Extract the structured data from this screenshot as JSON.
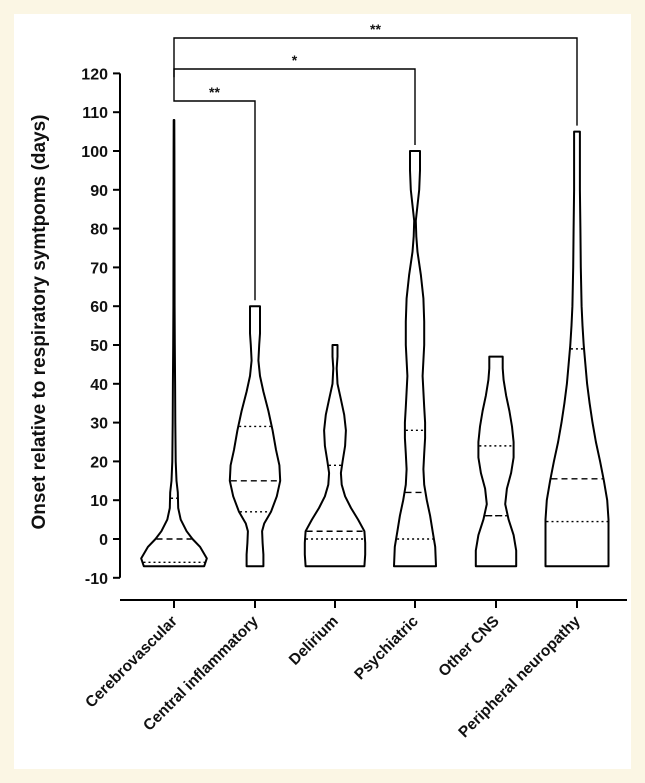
{
  "chart_data": {
    "type": "violin",
    "ylabel": "Onset relative to respiratory symtpoms (days)",
    "ylim": [
      -10,
      120
    ],
    "yticks": [
      -10,
      0,
      10,
      20,
      30,
      40,
      50,
      60,
      70,
      80,
      90,
      100,
      110,
      120
    ],
    "categories": [
      "Cerebrovascular",
      "Central inflammatory",
      "Delirium",
      "Psychiatric",
      "Other CNS",
      "Peripheral neuropathy"
    ],
    "series": [
      {
        "category": "Cerebrovascular",
        "min": -7,
        "max": 108,
        "median": 0,
        "q1": -6,
        "q3": 10.5,
        "density": [
          [
            -7,
            0.72
          ],
          [
            -5,
            0.78
          ],
          [
            -2,
            0.62
          ],
          [
            0,
            0.44
          ],
          [
            2,
            0.3
          ],
          [
            5,
            0.16
          ],
          [
            8,
            0.1
          ],
          [
            12,
            0.09
          ],
          [
            15,
            0.06
          ],
          [
            20,
            0.04
          ],
          [
            30,
            0.03
          ],
          [
            40,
            0.025
          ],
          [
            50,
            0.02
          ],
          [
            60,
            0.015
          ],
          [
            80,
            0.012
          ],
          [
            100,
            0.01
          ],
          [
            108,
            0.008
          ]
        ]
      },
      {
        "category": "Central inflammatory",
        "min": -7,
        "max": 60,
        "median": 15,
        "q1": 7,
        "q3": 29,
        "density": [
          [
            -7,
            0.2
          ],
          [
            -4,
            0.2
          ],
          [
            -1,
            0.18
          ],
          [
            2,
            0.17
          ],
          [
            4,
            0.22
          ],
          [
            7,
            0.38
          ],
          [
            11,
            0.52
          ],
          [
            15,
            0.6
          ],
          [
            19,
            0.58
          ],
          [
            23,
            0.5
          ],
          [
            28,
            0.42
          ],
          [
            33,
            0.32
          ],
          [
            38,
            0.2
          ],
          [
            42,
            0.12
          ],
          [
            46,
            0.08
          ],
          [
            50,
            0.1
          ],
          [
            53,
            0.12
          ],
          [
            56,
            0.12
          ],
          [
            60,
            0.12
          ]
        ]
      },
      {
        "category": "Delirium",
        "min": -7,
        "max": 50,
        "median": 2,
        "q1": 0,
        "q3": 19,
        "density": [
          [
            -7,
            0.7
          ],
          [
            -4,
            0.72
          ],
          [
            -1,
            0.72
          ],
          [
            2,
            0.7
          ],
          [
            5,
            0.55
          ],
          [
            8,
            0.38
          ],
          [
            11,
            0.24
          ],
          [
            14,
            0.16
          ],
          [
            17,
            0.14
          ],
          [
            20,
            0.18
          ],
          [
            24,
            0.24
          ],
          [
            28,
            0.26
          ],
          [
            32,
            0.22
          ],
          [
            36,
            0.14
          ],
          [
            40,
            0.06
          ],
          [
            44,
            0.04
          ],
          [
            47,
            0.06
          ],
          [
            50,
            0.06
          ]
        ]
      },
      {
        "category": "Psychiatric",
        "min": -7,
        "max": 100,
        "median": 12,
        "q1": 0,
        "q3": 28,
        "density": [
          [
            -7,
            0.5
          ],
          [
            -2,
            0.48
          ],
          [
            2,
            0.42
          ],
          [
            6,
            0.36
          ],
          [
            10,
            0.28
          ],
          [
            14,
            0.22
          ],
          [
            18,
            0.2
          ],
          [
            22,
            0.22
          ],
          [
            26,
            0.24
          ],
          [
            30,
            0.24
          ],
          [
            34,
            0.22
          ],
          [
            38,
            0.2
          ],
          [
            42,
            0.18
          ],
          [
            46,
            0.2
          ],
          [
            50,
            0.22
          ],
          [
            56,
            0.22
          ],
          [
            62,
            0.2
          ],
          [
            68,
            0.14
          ],
          [
            74,
            0.06
          ],
          [
            78,
            0.03
          ],
          [
            82,
            0.02
          ],
          [
            86,
            0.06
          ],
          [
            90,
            0.1
          ],
          [
            95,
            0.12
          ],
          [
            100,
            0.12
          ]
        ]
      },
      {
        "category": "Other CNS",
        "min": -7,
        "max": 47,
        "median": 6,
        "q1": 6,
        "q3": 24,
        "density": [
          [
            -7,
            0.48
          ],
          [
            -3,
            0.48
          ],
          [
            1,
            0.42
          ],
          [
            5,
            0.3
          ],
          [
            9,
            0.22
          ],
          [
            13,
            0.26
          ],
          [
            17,
            0.36
          ],
          [
            21,
            0.42
          ],
          [
            25,
            0.42
          ],
          [
            29,
            0.38
          ],
          [
            33,
            0.32
          ],
          [
            37,
            0.24
          ],
          [
            41,
            0.18
          ],
          [
            44,
            0.16
          ],
          [
            47,
            0.16
          ]
        ]
      },
      {
        "category": "Peripheral neuropathy",
        "min": -7,
        "max": 105,
        "median": 15.5,
        "q1": 4.5,
        "q3": 49,
        "density": [
          [
            -7,
            0.75
          ],
          [
            -3,
            0.75
          ],
          [
            1,
            0.75
          ],
          [
            5,
            0.75
          ],
          [
            10,
            0.72
          ],
          [
            15,
            0.64
          ],
          [
            20,
            0.55
          ],
          [
            25,
            0.45
          ],
          [
            30,
            0.37
          ],
          [
            35,
            0.3
          ],
          [
            40,
            0.24
          ],
          [
            45,
            0.2
          ],
          [
            50,
            0.16
          ],
          [
            55,
            0.13
          ],
          [
            60,
            0.11
          ],
          [
            65,
            0.1
          ],
          [
            70,
            0.09
          ],
          [
            80,
            0.08
          ],
          [
            90,
            0.07
          ],
          [
            100,
            0.07
          ],
          [
            105,
            0.07
          ]
        ]
      }
    ],
    "significance": [
      {
        "from": "Cerebrovascular",
        "to": "Central inflammatory",
        "label": "**",
        "level": 1
      },
      {
        "from": "Cerebrovascular",
        "to": "Psychiatric",
        "label": "*",
        "level": 2
      },
      {
        "from": "Cerebrovascular",
        "to": "Peripheral neuropathy",
        "label": "**",
        "level": 3
      }
    ]
  }
}
